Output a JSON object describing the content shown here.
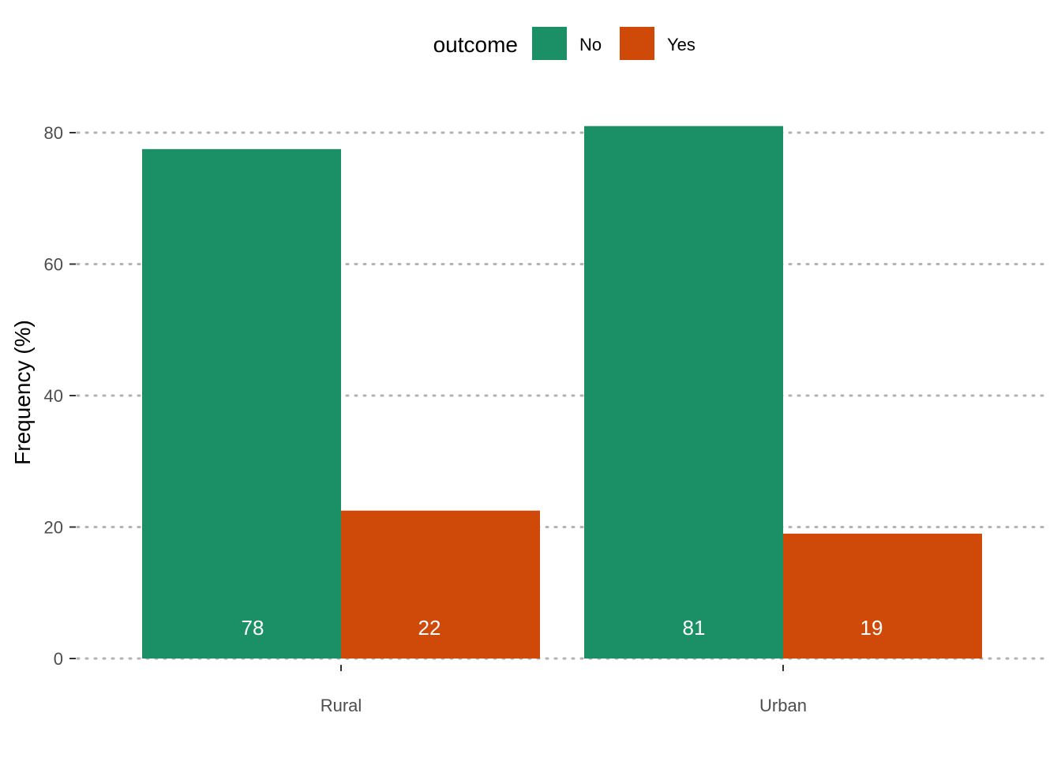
{
  "chart_data": {
    "type": "bar",
    "categories": [
      "Rural",
      "Urban"
    ],
    "series": [
      {
        "name": "No",
        "values": [
          77.5,
          81
        ],
        "labels": [
          "78",
          "81"
        ],
        "color": "#1b9067"
      },
      {
        "name": "Yes",
        "values": [
          22.5,
          19
        ],
        "labels": [
          "22",
          "19"
        ],
        "color": "#cf4a09"
      }
    ],
    "title": "",
    "xlabel": "",
    "ylabel": "Frequency (%)",
    "ylim": [
      0,
      80
    ],
    "yticks": [
      "0",
      "20",
      "40",
      "60",
      "80"
    ],
    "grid": "horizontal dotted",
    "legend": {
      "title": "outcome",
      "position": "top"
    }
  }
}
